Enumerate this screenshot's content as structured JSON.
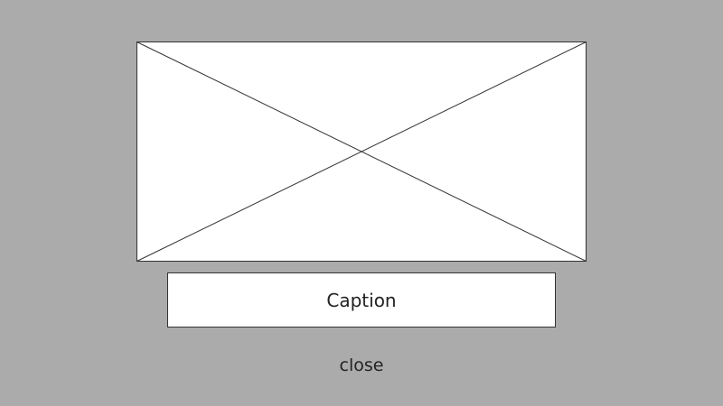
{
  "lightbox": {
    "image": {
      "icon": "image-placeholder-icon"
    },
    "caption": {
      "text": "Caption"
    },
    "close": {
      "label": "close"
    }
  },
  "colors": {
    "backdrop": "#ababab",
    "panel": "#ffffff",
    "border": "#333333",
    "text": "#222222"
  }
}
